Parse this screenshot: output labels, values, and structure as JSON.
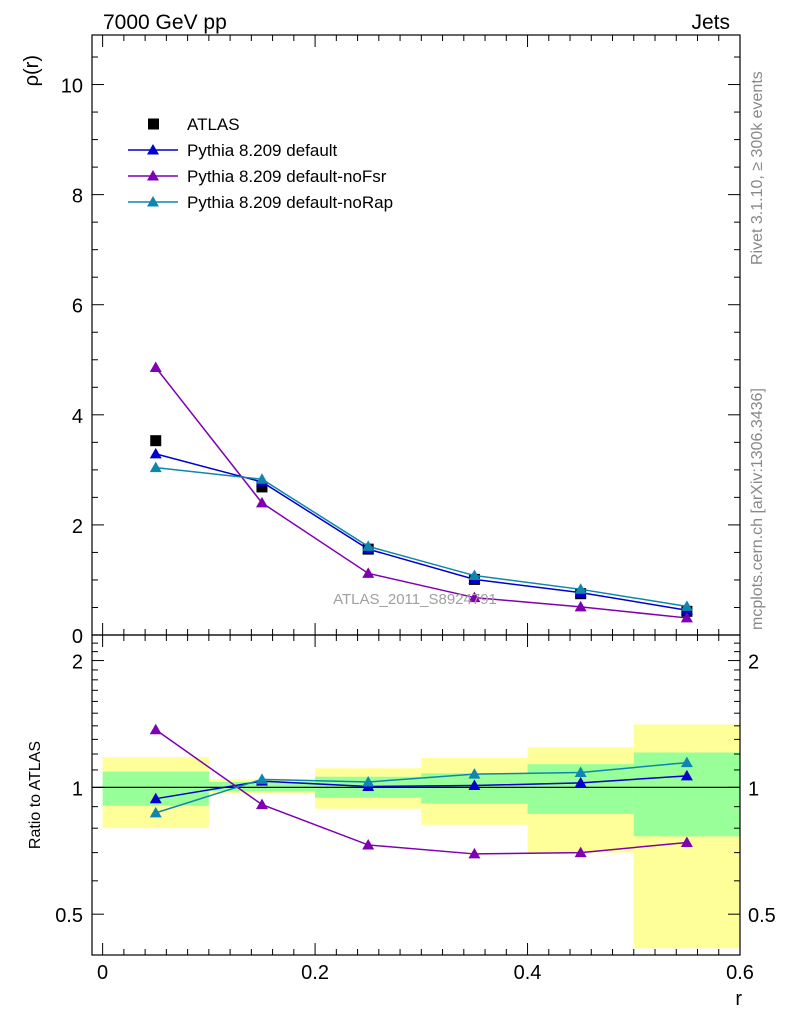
{
  "header": {
    "energy_label": "7000 GeV pp",
    "process_label": "Jets"
  },
  "side_labels": {
    "rivet": "Rivet 3.1.10, ≥ 300k events",
    "mcplots": "mcplots.cern.ch [arXiv:1306.3436]"
  },
  "watermark": "ATLAS_2011_S8924791",
  "legend": {
    "entries": [
      {
        "label": "ATLAS",
        "color": "#000000",
        "marker": "square"
      },
      {
        "label": "Pythia 8.209 default",
        "color": "#0000cc",
        "marker": "triangle"
      },
      {
        "label": "Pythia 8.209 default-noFsr",
        "color": "#7f00b2",
        "marker": "triangle"
      },
      {
        "label": "Pythia 8.209 default-noRap",
        "color": "#0f86ad",
        "marker": "triangle"
      }
    ]
  },
  "chart_data": [
    {
      "type": "line",
      "panel": "main",
      "xlabel": "",
      "ylabel": "ρ(r)",
      "xlim": [
        -0.01,
        0.6
      ],
      "ylim": [
        0,
        10.9
      ],
      "yticks": [
        0,
        2,
        4,
        6,
        8,
        10
      ],
      "ytick_labels": [
        "0",
        "2",
        "4",
        "6",
        "8",
        "10"
      ],
      "x": [
        0.05,
        0.15,
        0.25,
        0.35,
        0.45,
        0.55
      ],
      "series": [
        {
          "name": "ATLAS",
          "values": [
            3.53,
            2.69,
            1.56,
            1.01,
            0.75,
            0.43
          ]
        },
        {
          "name": "Pythia 8.209 default",
          "values": [
            3.29,
            2.78,
            1.56,
            1.01,
            0.77,
            0.45
          ]
        },
        {
          "name": "Pythia 8.209 default-noFsr",
          "values": [
            4.86,
            2.4,
            1.12,
            0.68,
            0.51,
            0.31
          ]
        },
        {
          "name": "Pythia 8.209 default-noRap",
          "values": [
            3.04,
            2.83,
            1.61,
            1.08,
            0.83,
            0.52
          ]
        }
      ]
    },
    {
      "type": "line",
      "panel": "ratio",
      "xlabel": "r",
      "ylabel": "Ratio to ATLAS",
      "xlim": [
        -0.01,
        0.6
      ],
      "ylim": [
        0.4,
        2.3
      ],
      "ytick_labels": [
        "0.5",
        "1",
        "2"
      ],
      "xtick_labels": [
        "0",
        "0.2",
        "0.4",
        "0.6"
      ],
      "bins": [
        {
          "x_lo": 0.0,
          "x_hi": 0.1,
          "green": [
            0.905,
            1.09
          ],
          "yellow": [
            0.8,
            1.18
          ]
        },
        {
          "x_lo": 0.1,
          "x_hi": 0.2,
          "green": [
            0.98,
            1.03
          ],
          "yellow": [
            0.965,
            1.045
          ]
        },
        {
          "x_lo": 0.2,
          "x_hi": 0.3,
          "green": [
            0.945,
            1.06
          ],
          "yellow": [
            0.89,
            1.11
          ]
        },
        {
          "x_lo": 0.3,
          "x_hi": 0.4,
          "green": [
            0.915,
            1.08
          ],
          "yellow": [
            0.815,
            1.175
          ]
        },
        {
          "x_lo": 0.4,
          "x_hi": 0.5,
          "green": [
            0.865,
            1.135
          ],
          "yellow": [
            0.7,
            1.245
          ]
        },
        {
          "x_lo": 0.5,
          "x_hi": 0.6,
          "green": [
            0.765,
            1.21
          ],
          "yellow": [
            0.415,
            1.41
          ]
        }
      ],
      "x": [
        0.05,
        0.15,
        0.25,
        0.35,
        0.45,
        0.55
      ],
      "series": [
        {
          "name": "Pythia 8.209 default",
          "values": [
            0.94,
            1.035,
            1.005,
            1.01,
            1.025,
            1.065
          ]
        },
        {
          "name": "Pythia 8.209 default-noFsr",
          "values": [
            1.37,
            0.91,
            0.73,
            0.695,
            0.7,
            0.74
          ]
        },
        {
          "name": "Pythia 8.209 default-noRap",
          "values": [
            0.87,
            1.045,
            1.03,
            1.075,
            1.085,
            1.145
          ]
        }
      ]
    }
  ]
}
